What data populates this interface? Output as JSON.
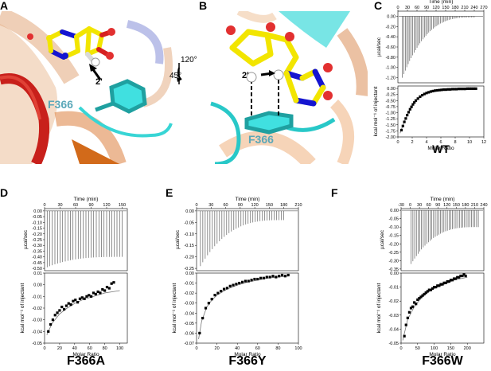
{
  "panel_labels": {
    "A": "A",
    "B": "B",
    "C": "C",
    "D": "D",
    "E": "E",
    "F": "F"
  },
  "structure": {
    "residue_label_A": "F366",
    "residue_label_B": "F366",
    "position_label_A": "2'",
    "position_label_B": "2'",
    "rotation_1": "120°",
    "rotation_2": "45°"
  },
  "axis_text": {
    "time": "Time (min)",
    "ucal": "µcal/sec",
    "kcal": "kcal mol⁻¹ of injectant",
    "molar_ratio": "Molar Ratio"
  },
  "chart_data": [
    {
      "type": "scatter",
      "panel": "C",
      "name": "WT",
      "top": {
        "xlabel": "Time (min)",
        "ylabel": "µcal/sec",
        "xlim": [
          0,
          270
        ],
        "ylim": [
          -1.3,
          0.1
        ],
        "xticks": [
          0,
          30,
          60,
          90,
          120,
          150,
          180,
          210,
          240,
          270
        ],
        "yticks": [
          0.0,
          -0.2,
          -0.4,
          -0.6,
          -0.8,
          -1.0,
          -1.2
        ],
        "ytick_labels": [
          "0.00",
          "-0.20",
          "-0.40",
          "-0.60",
          "-0.80",
          "-1.00",
          "-1.20"
        ],
        "injections": 50,
        "inj_start": 14,
        "inj_end": 240,
        "peak_first": -1.2,
        "peak_last": -0.02
      },
      "bottom": {
        "xlabel": "Molar Ratio",
        "ylabel": "kcal mol⁻¹ of injectant",
        "xlim": [
          0,
          12
        ],
        "ylim": [
          -2.0,
          0.1
        ],
        "xticks": [
          0,
          2,
          4,
          6,
          8,
          10,
          12
        ],
        "yticks": [
          0.0,
          -0.25,
          -0.5,
          -0.75,
          -1.0,
          -1.25,
          -1.5,
          -1.75,
          -2.0
        ],
        "ytick_labels": [
          "0.00",
          "-0.25",
          "-0.50",
          "-0.75",
          "-1.00",
          "-1.25",
          "-1.50",
          "-1.75",
          "-2.00"
        ],
        "x": [
          0.5,
          0.7,
          0.9,
          1.1,
          1.3,
          1.5,
          1.7,
          1.9,
          2.1,
          2.3,
          2.5,
          2.8,
          3.1,
          3.4,
          3.7,
          4.0,
          4.3,
          4.6,
          4.9,
          5.2,
          5.5,
          5.8,
          6.1,
          6.4,
          6.7,
          7.0,
          7.3,
          7.6,
          7.9,
          8.2,
          8.5,
          8.8,
          9.1,
          9.4,
          9.7,
          10.0,
          10.3,
          10.6,
          10.9
        ],
        "y": [
          -1.72,
          -1.55,
          -1.38,
          -1.24,
          -1.1,
          -0.98,
          -0.86,
          -0.76,
          -0.66,
          -0.58,
          -0.5,
          -0.42,
          -0.34,
          -0.28,
          -0.23,
          -0.19,
          -0.16,
          -0.13,
          -0.11,
          -0.09,
          -0.08,
          -0.07,
          -0.06,
          -0.05,
          -0.05,
          -0.04,
          -0.04,
          -0.03,
          -0.03,
          -0.03,
          -0.02,
          -0.02,
          -0.02,
          -0.02,
          -0.01,
          -0.01,
          -0.01,
          -0.01,
          -0.01
        ],
        "fit_x": [
          0.3,
          0.6,
          1.0,
          1.5,
          2.0,
          2.5,
          3.0,
          3.5,
          4.0,
          5.0,
          6.0,
          7.0,
          8.0,
          9.0,
          10.0,
          11.0
        ],
        "fit_y": [
          -1.85,
          -1.6,
          -1.3,
          -0.98,
          -0.72,
          -0.52,
          -0.38,
          -0.28,
          -0.2,
          -0.11,
          -0.07,
          -0.04,
          -0.03,
          -0.02,
          -0.01,
          -0.01
        ]
      }
    },
    {
      "type": "scatter",
      "panel": "D",
      "name": "F366A",
      "top": {
        "xlabel": "Time (min)",
        "ylabel": "µcal/sec",
        "xlim": [
          0,
          160
        ],
        "ylim": [
          -0.52,
          0.02
        ],
        "xticks": [
          0,
          30,
          60,
          90,
          120,
          150
        ],
        "yticks": [
          0.0,
          -0.05,
          -0.1,
          -0.15,
          -0.2,
          -0.25,
          -0.3,
          -0.35,
          -0.4,
          -0.45,
          -0.5
        ],
        "ytick_labels": [
          "0.00",
          "-0.05",
          "-0.10",
          "-0.15",
          "-0.20",
          "-0.25",
          "-0.30",
          "-0.35",
          "-0.40",
          "-0.45",
          "-0.50"
        ],
        "injections": 30,
        "inj_start": 5,
        "inj_end": 150,
        "peak_first": -0.49,
        "peak_last": -0.4
      },
      "bottom": {
        "xlabel": "Molar Ratio",
        "ylabel": "kcal mol⁻¹ of injectant",
        "xlim": [
          0,
          110
        ],
        "ylim": [
          -0.05,
          0.01
        ],
        "xticks": [
          0,
          20,
          40,
          60,
          80,
          100
        ],
        "yticks": [
          0.01,
          0.0,
          -0.01,
          -0.02,
          -0.03,
          -0.04,
          -0.05
        ],
        "ytick_labels": [
          "0.01",
          "0.00",
          "-0.01",
          "-0.02",
          "-0.03",
          "-0.04",
          "-0.05"
        ],
        "x": [
          5,
          8,
          11,
          14,
          17,
          20,
          23,
          26,
          29,
          32,
          35,
          38,
          41,
          44,
          47,
          50,
          53,
          56,
          59,
          62,
          65,
          68,
          71,
          74,
          77,
          80,
          83,
          86,
          89,
          92
        ],
        "y": [
          -0.04,
          -0.034,
          -0.03,
          -0.026,
          -0.024,
          -0.022,
          -0.019,
          -0.021,
          -0.018,
          -0.016,
          -0.017,
          -0.014,
          -0.013,
          -0.015,
          -0.012,
          -0.011,
          -0.012,
          -0.01,
          -0.009,
          -0.01,
          -0.007,
          -0.008,
          -0.006,
          -0.007,
          -0.004,
          -0.005,
          -0.002,
          -0.003,
          0.001,
          0.002
        ],
        "fit_x": [
          3,
          10,
          20,
          30,
          40,
          50,
          60,
          70,
          80,
          90,
          100
        ],
        "fit_y": [
          -0.043,
          -0.033,
          -0.025,
          -0.02,
          -0.016,
          -0.013,
          -0.011,
          -0.009,
          -0.007,
          -0.006,
          -0.005
        ]
      }
    },
    {
      "type": "scatter",
      "panel": "E",
      "name": "F366Y",
      "top": {
        "xlabel": "Time (min)",
        "ylabel": "µcal/sec",
        "xlim": [
          0,
          210
        ],
        "ylim": [
          -0.26,
          0.01
        ],
        "xticks": [
          0,
          30,
          60,
          90,
          120,
          150,
          180,
          210
        ],
        "yticks": [
          0.0,
          -0.05,
          -0.1,
          -0.15,
          -0.2,
          -0.25
        ],
        "ytick_labels": [
          "0.00",
          "-0.05",
          "-0.10",
          "-0.15",
          "-0.20",
          "-0.25"
        ],
        "injections": 36,
        "inj_start": 8,
        "inj_end": 180,
        "peak_first": -0.24,
        "peak_last": -0.04
      },
      "bottom": {
        "xlabel": "Molar Ratio",
        "ylabel": "kcal mol⁻¹ of injectant",
        "xlim": [
          0,
          100
        ],
        "ylim": [
          -0.07,
          0.0
        ],
        "xticks": [
          0,
          20,
          40,
          60,
          80,
          100
        ],
        "yticks": [
          0.0,
          -0.01,
          -0.02,
          -0.03,
          -0.04,
          -0.05,
          -0.06,
          -0.07
        ],
        "ytick_labels": [
          "0.00",
          "-0.01",
          "-0.02",
          "-0.03",
          "-0.04",
          "-0.05",
          "-0.06",
          "-0.07"
        ],
        "x": [
          3,
          6,
          9,
          12,
          15,
          18,
          21,
          24,
          27,
          30,
          33,
          36,
          39,
          42,
          45,
          48,
          51,
          54,
          57,
          60,
          63,
          66,
          69,
          72,
          75,
          78,
          81,
          84,
          87,
          90
        ],
        "y": [
          -0.06,
          -0.045,
          -0.035,
          -0.03,
          -0.026,
          -0.022,
          -0.02,
          -0.018,
          -0.016,
          -0.015,
          -0.013,
          -0.012,
          -0.011,
          -0.01,
          -0.009,
          -0.008,
          -0.008,
          -0.007,
          -0.006,
          -0.006,
          -0.005,
          -0.005,
          -0.004,
          -0.004,
          -0.003,
          -0.004,
          -0.003,
          -0.002,
          -0.003,
          -0.002
        ],
        "fit_x": [
          2,
          5,
          10,
          15,
          20,
          30,
          40,
          50,
          60,
          70,
          80,
          90
        ],
        "fit_y": [
          -0.066,
          -0.048,
          -0.034,
          -0.027,
          -0.022,
          -0.016,
          -0.012,
          -0.009,
          -0.007,
          -0.005,
          -0.004,
          -0.003
        ]
      }
    },
    {
      "type": "scatter",
      "panel": "F",
      "name": "F366W",
      "top": {
        "xlabel": "Time (min)",
        "ylabel": "µcal/sec",
        "xlim": [
          -30,
          240
        ],
        "ylim": [
          -0.36,
          0.01
        ],
        "xticks": [
          -30,
          0,
          30,
          60,
          90,
          120,
          150,
          180,
          210,
          240
        ],
        "yticks": [
          0.0,
          -0.05,
          -0.1,
          -0.15,
          -0.2,
          -0.25,
          -0.3,
          -0.35
        ],
        "ytick_labels": [
          "0.00",
          "-0.05",
          "-0.10",
          "-0.15",
          "-0.20",
          "-0.25",
          "-0.30",
          "-0.35"
        ],
        "injections": 40,
        "inj_start": 3,
        "inj_end": 222,
        "peak_first": -0.32,
        "peak_last": -0.1
      },
      "bottom": {
        "xlabel": "Molar Ratio",
        "ylabel": "kcal mol⁻¹ of injectant",
        "xlim": [
          0,
          250
        ],
        "ylim": [
          -0.05,
          0.0
        ],
        "xticks": [
          0,
          50,
          100,
          150,
          200
        ],
        "yticks": [
          0.0,
          -0.01,
          -0.02,
          -0.03,
          -0.04,
          -0.05
        ],
        "ytick_labels": [
          "0.00",
          "-0.01",
          "-0.02",
          "-0.03",
          "-0.04",
          "-0.05"
        ],
        "x": [
          10,
          15,
          20,
          25,
          30,
          35,
          40,
          45,
          50,
          55,
          60,
          65,
          70,
          75,
          80,
          85,
          90,
          95,
          100,
          105,
          110,
          115,
          120,
          125,
          130,
          135,
          140,
          145,
          150,
          155,
          160,
          165,
          170,
          175,
          180,
          185,
          190,
          195
        ],
        "y": [
          -0.045,
          -0.037,
          -0.032,
          -0.028,
          -0.025,
          -0.024,
          -0.021,
          -0.022,
          -0.019,
          -0.018,
          -0.017,
          -0.016,
          -0.015,
          -0.014,
          -0.013,
          -0.012,
          -0.012,
          -0.011,
          -0.01,
          -0.01,
          -0.009,
          -0.009,
          -0.008,
          -0.008,
          -0.007,
          -0.007,
          -0.006,
          -0.006,
          -0.005,
          -0.005,
          -0.004,
          -0.004,
          -0.003,
          -0.003,
          -0.002,
          -0.002,
          -0.001,
          -0.002
        ],
        "fit_x": [
          5,
          20,
          40,
          60,
          80,
          100,
          120,
          140,
          160,
          180,
          200
        ],
        "fit_y": [
          -0.048,
          -0.033,
          -0.024,
          -0.018,
          -0.014,
          -0.011,
          -0.009,
          -0.007,
          -0.005,
          -0.004,
          -0.003
        ]
      }
    }
  ]
}
